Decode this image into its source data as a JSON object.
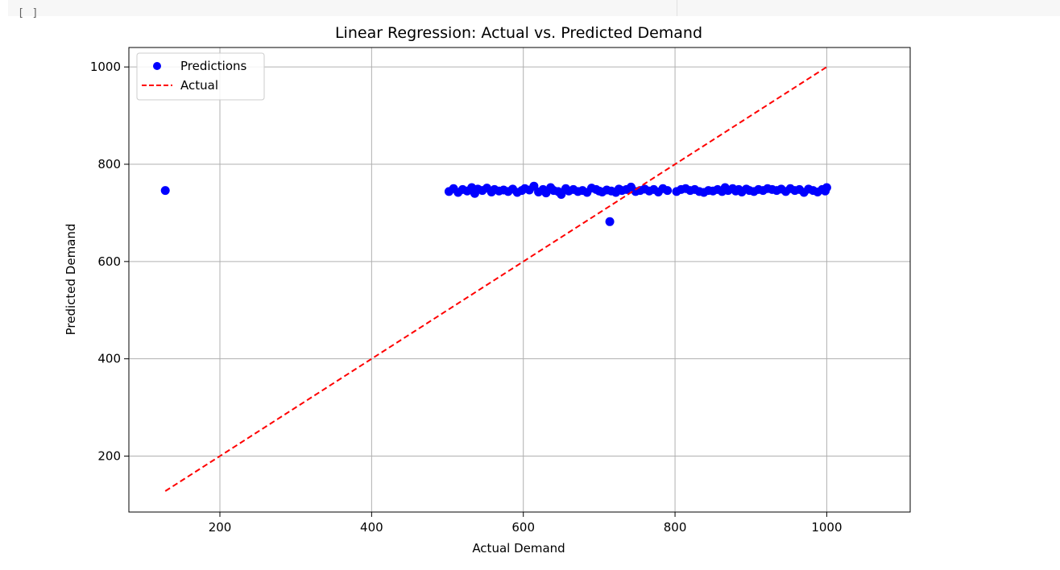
{
  "cell": {
    "prompt": "[ ]"
  },
  "colors": {
    "points": "#0000ff",
    "ideal_line": "#ff0000",
    "grid": "#b0b0b0",
    "axes": "#000000"
  },
  "chart_data": {
    "type": "scatter",
    "title": "Linear Regression: Actual vs. Predicted Demand",
    "xlabel": "Actual Demand",
    "ylabel": "Predicted Demand",
    "xlim": [
      80,
      1110
    ],
    "ylim": [
      85,
      1040
    ],
    "xticks": [
      200,
      400,
      600,
      800,
      1000
    ],
    "yticks": [
      200,
      400,
      600,
      800,
      1000
    ],
    "grid": true,
    "legend_position": "top-left",
    "series": [
      {
        "name": "Predictions",
        "kind": "scatter",
        "color": "#0000ff",
        "x": [
          128,
          502,
          508,
          514,
          520,
          526,
          532,
          536,
          540,
          546,
          552,
          558,
          562,
          568,
          574,
          580,
          586,
          592,
          598,
          602,
          608,
          614,
          620,
          626,
          630,
          636,
          640,
          646,
          650,
          656,
          660,
          666,
          672,
          678,
          684,
          690,
          696,
          700,
          704,
          710,
          716,
          722,
          726,
          730,
          736,
          742,
          748,
          754,
          760,
          766,
          772,
          778,
          784,
          790,
          802,
          808,
          814,
          820,
          826,
          832,
          838,
          844,
          850,
          856,
          862,
          866,
          870,
          876,
          880,
          884,
          888,
          894,
          898,
          904,
          910,
          916,
          922,
          928,
          934,
          940,
          946,
          952,
          958,
          964,
          970,
          976,
          982,
          988,
          994,
          998,
          1000,
          714
        ],
        "y": [
          746,
          744,
          750,
          742,
          748,
          745,
          752,
          740,
          749,
          746,
          751,
          743,
          748,
          745,
          747,
          744,
          749,
          742,
          746,
          750,
          747,
          755,
          743,
          748,
          741,
          752,
          746,
          744,
          738,
          750,
          745,
          748,
          744,
          746,
          742,
          751,
          748,
          745,
          743,
          747,
          745,
          742,
          749,
          746,
          748,
          753,
          744,
          746,
          749,
          745,
          748,
          743,
          750,
          746,
          744,
          748,
          750,
          746,
          748,
          744,
          742,
          746,
          745,
          748,
          744,
          752,
          746,
          750,
          745,
          748,
          743,
          749,
          746,
          744,
          748,
          746,
          750,
          748,
          746,
          749,
          744,
          750,
          746,
          748,
          742,
          749,
          746,
          743,
          748,
          745,
          752,
          682
        ]
      },
      {
        "name": "Actual",
        "kind": "line",
        "style": "dashed",
        "color": "#ff0000",
        "x": [
          128,
          1000
        ],
        "y": [
          128,
          1000
        ]
      }
    ]
  }
}
